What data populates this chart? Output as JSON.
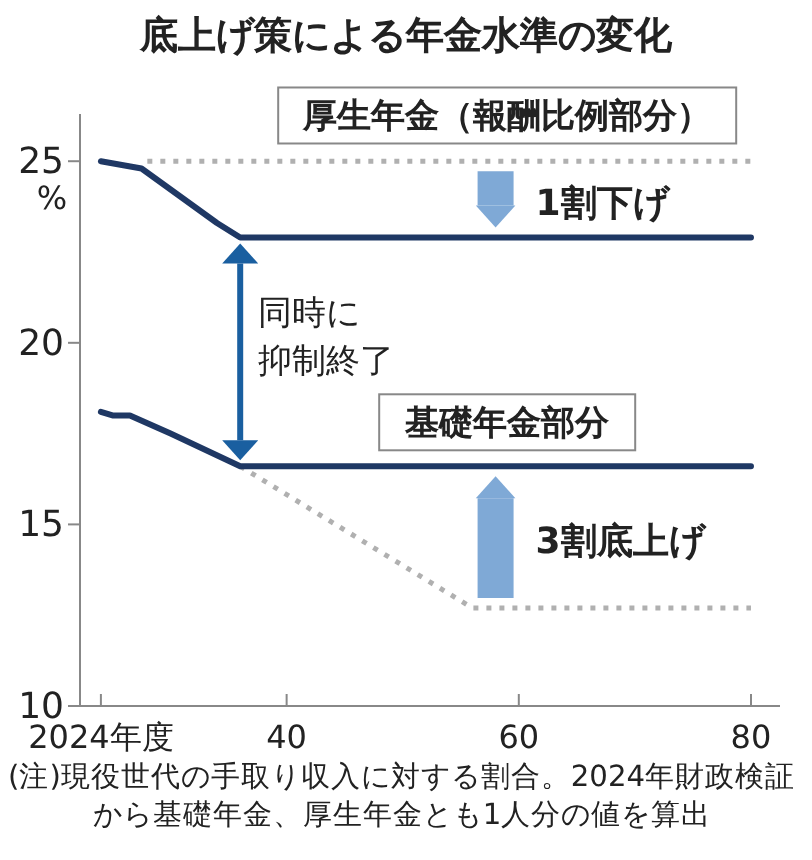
{
  "chart_data": {
    "type": "line",
    "title": "底上げ策による年金水準の変化",
    "ylabel": "%",
    "xlim": [
      2022.2,
      2082.5
    ],
    "ylim": [
      10,
      26.3
    ],
    "xticks": [
      {
        "value": 2024,
        "label": "2024年度"
      },
      {
        "value": 2040,
        "label": "40"
      },
      {
        "value": 2060,
        "label": "60"
      },
      {
        "value": 2080,
        "label": "80"
      }
    ],
    "yticks": [
      10,
      15,
      20,
      25
    ],
    "grid": false,
    "series": [
      {
        "name": "厚生年金（報酬比例部分）",
        "color": "#1f3864",
        "line_style": "solid",
        "x": [
          2024,
          2027.5,
          2034,
          2036,
          2080
        ],
        "values": [
          25,
          24.8,
          23.3,
          22.9,
          22.9
        ]
      },
      {
        "color": "#b0b0b0",
        "line_style": "dotted",
        "x": [
          2028,
          2080
        ],
        "values": [
          25,
          25
        ]
      },
      {
        "name": "基礎年金部分",
        "color": "#1f3864",
        "line_style": "solid",
        "x": [
          2024,
          2025,
          2026.5,
          2030,
          2036,
          2080
        ],
        "values": [
          18.1,
          18,
          18,
          17.5,
          16.6,
          16.6
        ]
      },
      {
        "color": "#b0b0b0",
        "line_style": "dotted",
        "x": [
          2036,
          2056,
          2080
        ],
        "values": [
          16.6,
          12.7,
          12.7
        ]
      }
    ],
    "annotations": [
      "1割下げ",
      "3割底上げ",
      "同時に",
      "抑制終了",
      "(注)現役世代の手取り収入に対する割合。2024年財政検証から基礎年金、厚生年金とも1人分の値を算出"
    ]
  }
}
